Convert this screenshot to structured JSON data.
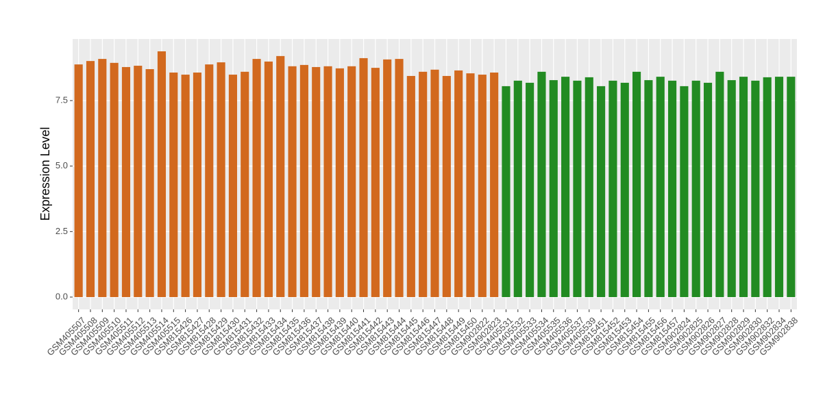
{
  "chart_data": {
    "type": "bar",
    "y_label": "Expression Level",
    "categories": [
      "GSM405507",
      "GSM405508",
      "GSM405509",
      "GSM405510",
      "GSM405511",
      "GSM405512",
      "GSM405513",
      "GSM405514",
      "GSM405515",
      "GSM815426",
      "GSM815427",
      "GSM815428",
      "GSM815429",
      "GSM815430",
      "GSM815431",
      "GSM815432",
      "GSM815433",
      "GSM815434",
      "GSM815435",
      "GSM815436",
      "GSM815437",
      "GSM815438",
      "GSM815439",
      "GSM815440",
      "GSM815441",
      "GSM815442",
      "GSM815443",
      "GSM815444",
      "GSM815445",
      "GSM815446",
      "GSM815447",
      "GSM815448",
      "GSM815449",
      "GSM815450",
      "GSM902822",
      "GSM902823",
      "GSM405531",
      "GSM405532",
      "GSM405533",
      "GSM405534",
      "GSM405535",
      "GSM405536",
      "GSM405537",
      "GSM405539",
      "GSM815451",
      "GSM815452",
      "GSM815453",
      "GSM815454",
      "GSM815455",
      "GSM815456",
      "GSM815457",
      "GSM902824",
      "GSM902825",
      "GSM902826",
      "GSM902827",
      "GSM902828",
      "GSM902829",
      "GSM902830",
      "GSM902832",
      "GSM902834",
      "GSM902838"
    ],
    "values": [
      8.88,
      9.01,
      9.09,
      8.94,
      8.78,
      8.83,
      8.7,
      9.38,
      8.57,
      8.49,
      8.57,
      8.88,
      8.96,
      8.49,
      8.6,
      9.09,
      8.99,
      9.2,
      8.81,
      8.86,
      8.78,
      8.81,
      8.73,
      8.81,
      9.12,
      8.75,
      9.07,
      9.09,
      8.44,
      8.6,
      8.68,
      8.44,
      8.65,
      8.54,
      8.49,
      8.57,
      8.05,
      8.26,
      8.18,
      8.6,
      8.28,
      8.41,
      8.26,
      8.39,
      8.05,
      8.26,
      8.18,
      8.6,
      8.28,
      8.41,
      8.26,
      8.05,
      8.26,
      8.18,
      8.6,
      8.28,
      8.41,
      8.26,
      8.39,
      8.41,
      8.41
    ],
    "colors": [
      "#d2691e",
      "#d2691e",
      "#d2691e",
      "#d2691e",
      "#d2691e",
      "#d2691e",
      "#d2691e",
      "#d2691e",
      "#d2691e",
      "#d2691e",
      "#d2691e",
      "#d2691e",
      "#d2691e",
      "#d2691e",
      "#d2691e",
      "#d2691e",
      "#d2691e",
      "#d2691e",
      "#d2691e",
      "#d2691e",
      "#d2691e",
      "#d2691e",
      "#d2691e",
      "#d2691e",
      "#d2691e",
      "#d2691e",
      "#d2691e",
      "#d2691e",
      "#d2691e",
      "#d2691e",
      "#d2691e",
      "#d2691e",
      "#d2691e",
      "#d2691e",
      "#d2691e",
      "#d2691e",
      "#228b22",
      "#228b22",
      "#228b22",
      "#228b22",
      "#228b22",
      "#228b22",
      "#228b22",
      "#228b22",
      "#228b22",
      "#228b22",
      "#228b22",
      "#228b22",
      "#228b22",
      "#228b22",
      "#228b22",
      "#228b22",
      "#228b22",
      "#228b22",
      "#228b22",
      "#228b22",
      "#228b22",
      "#228b22",
      "#228b22",
      "#228b22",
      "#228b22"
    ],
    "ylim": [
      -0.47,
      9.85
    ],
    "yticks": [
      {
        "value": 0,
        "label": "0.0"
      },
      2.5,
      {
        "value": 5,
        "label": "5.0"
      },
      7.5
    ],
    "grid": true
  }
}
